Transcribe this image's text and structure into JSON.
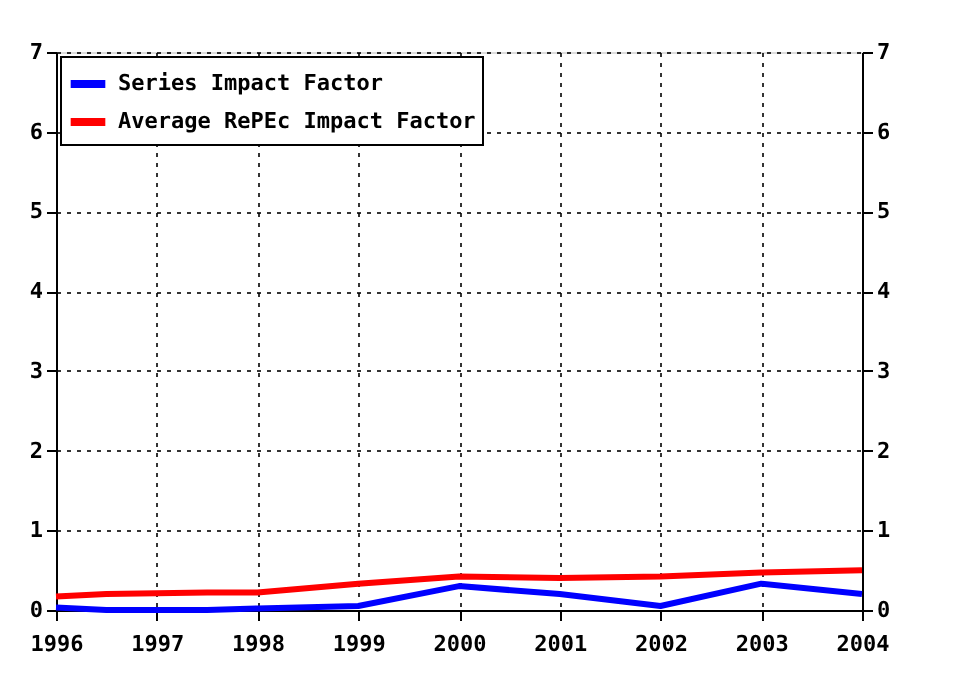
{
  "chart_data": {
    "type": "line",
    "series": [
      {
        "name": "Series Impact Factor",
        "color": "#0000ff",
        "x": [
          1996,
          1996.5,
          1997.5,
          1998,
          1999,
          2000,
          2001,
          2002,
          2003,
          2004
        ],
        "values": [
          0.03,
          0,
          0,
          0.02,
          0.05,
          0.3,
          0.2,
          0.05,
          0.33,
          0.2
        ]
      },
      {
        "name": "Average RePEc Impact Factor",
        "color": "#ff0000",
        "x": [
          1996,
          1996.5,
          1997.5,
          1998,
          1999,
          2000,
          2001,
          2002,
          2003,
          2004
        ],
        "values": [
          0.17,
          0.2,
          0.22,
          0.22,
          0.33,
          0.42,
          0.4,
          0.42,
          0.47,
          0.5
        ]
      }
    ],
    "xlim": [
      1996,
      2004
    ],
    "xticks": [
      1996,
      1997,
      1998,
      1999,
      2000,
      2001,
      2002,
      2003,
      2004
    ],
    "ylim": [
      0,
      7
    ],
    "yticks": [
      0,
      1,
      2,
      3,
      4,
      5,
      6,
      7
    ],
    "y2lim": [
      0,
      7
    ],
    "y2ticks": [
      0,
      1,
      2,
      3,
      4,
      5,
      6,
      7
    ],
    "grid": true,
    "legend": "top left",
    "marker": "none",
    "line_style": "solid"
  }
}
